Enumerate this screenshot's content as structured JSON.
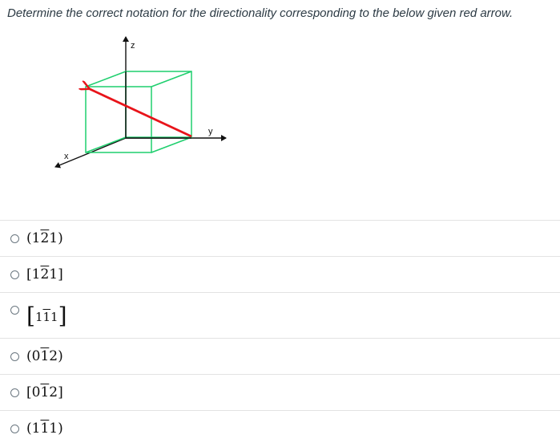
{
  "question": {
    "text": "Determine the correct notation for the directionality corresponding to the below given red arrow."
  },
  "figure": {
    "axis_labels": {
      "z": "z",
      "y": "y",
      "x": "x"
    },
    "colors": {
      "cube": "#1fcf6e",
      "arrow": "#e8141a",
      "axes": "#111111"
    }
  },
  "answers": [
    {
      "open": "(",
      "digits": [
        {
          "d": "1",
          "bar": false
        },
        {
          "d": "2",
          "bar": true
        },
        {
          "d": "1",
          "bar": false
        }
      ],
      "close": ")"
    },
    {
      "open": "[",
      "digits": [
        {
          "d": "1",
          "bar": false
        },
        {
          "d": "2",
          "bar": true
        },
        {
          "d": "1",
          "bar": false
        }
      ],
      "close": "]"
    },
    {
      "open": "[",
      "digits": [
        {
          "d": "1",
          "bar": false
        },
        {
          "d": "1",
          "bar": true
        },
        {
          "d": "1",
          "bar": false
        }
      ],
      "close": "]"
    },
    {
      "open": "(",
      "digits": [
        {
          "d": "0",
          "bar": false
        },
        {
          "d": "1",
          "bar": true
        },
        {
          "d": "2",
          "bar": false
        }
      ],
      "close": ")"
    },
    {
      "open": "[",
      "digits": [
        {
          "d": "0",
          "bar": false
        },
        {
          "d": "1",
          "bar": true
        },
        {
          "d": "2",
          "bar": false
        }
      ],
      "close": "]"
    },
    {
      "open": "(",
      "digits": [
        {
          "d": "1",
          "bar": false
        },
        {
          "d": "1",
          "bar": true
        },
        {
          "d": "1",
          "bar": false
        }
      ],
      "close": ")"
    }
  ]
}
